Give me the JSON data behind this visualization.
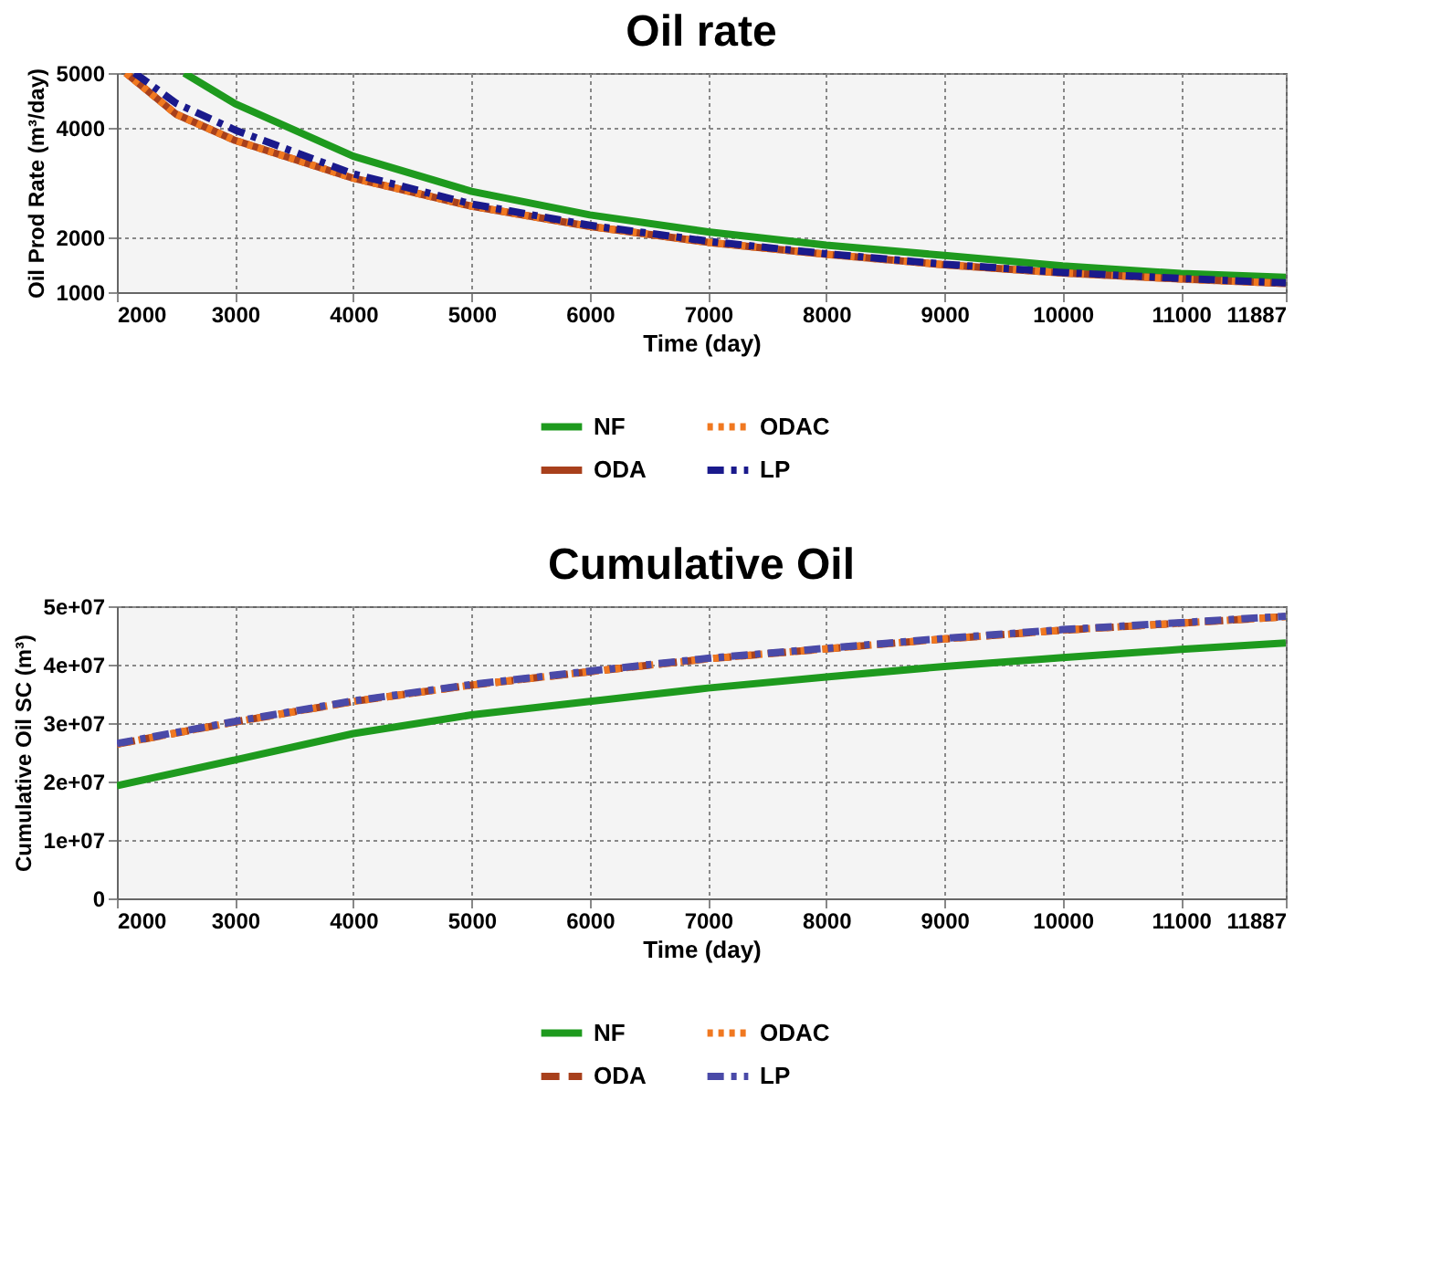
{
  "chart_data": [
    {
      "type": "line",
      "title": "Oil rate",
      "xlabel": "Time (day)",
      "ylabel": "Oil Prod Rate (m³/day)",
      "xlim": [
        2000,
        11887
      ],
      "xticks": [
        2000,
        3000,
        4000,
        5000,
        6000,
        7000,
        8000,
        9000,
        10000,
        11000,
        11887
      ],
      "ylim": [
        1000,
        5000
      ],
      "yticks": [
        1000,
        2000,
        4000,
        5000
      ],
      "grid": true,
      "legend": "bottom",
      "series": [
        {
          "name": "NF",
          "color": "#1e9a1e",
          "line_style": "solid",
          "x": [
            2570,
            2800,
            3000,
            4000,
            5000,
            6000,
            7000,
            8000,
            9000,
            10000,
            11000,
            11887
          ],
          "values": [
            5000,
            4700,
            4440,
            3480,
            2840,
            2410,
            2100,
            1860,
            1670,
            1480,
            1340,
            1270
          ]
        },
        {
          "name": "ODA",
          "color": "#a8401c",
          "line_style": "solid",
          "x": [
            2076,
            2500,
            3000,
            4000,
            5000,
            6000,
            7000,
            8000,
            9000,
            10000,
            11000,
            11887
          ],
          "values": [
            5000,
            4250,
            3770,
            3080,
            2570,
            2200,
            1910,
            1690,
            1500,
            1350,
            1240,
            1160
          ]
        },
        {
          "name": "ODAC",
          "color": "#f07820",
          "line_style": "dotted",
          "x": [
            2076,
            2500,
            3000,
            4000,
            5000,
            6000,
            7000,
            8000,
            9000,
            10000,
            11000,
            11887
          ],
          "values": [
            5000,
            4250,
            3770,
            3080,
            2570,
            2200,
            1910,
            1690,
            1500,
            1350,
            1240,
            1160
          ]
        },
        {
          "name": "LP",
          "color": "#1a1a8c",
          "line_style": "dashdot",
          "x": [
            2150,
            2500,
            3000,
            4000,
            5000,
            6000,
            7000,
            8000,
            9000,
            10000,
            11000,
            11887
          ],
          "values": [
            5000,
            4450,
            3960,
            3160,
            2610,
            2220,
            1930,
            1700,
            1510,
            1360,
            1250,
            1170
          ]
        }
      ]
    },
    {
      "type": "line",
      "title": "Cumulative Oil",
      "xlabel": "Time (day)",
      "ylabel": "Cumulative Oil SC (m³)",
      "xlim": [
        2000,
        11887
      ],
      "xticks": [
        2000,
        3000,
        4000,
        5000,
        6000,
        7000,
        8000,
        9000,
        10000,
        11000,
        11887
      ],
      "ylim": [
        0,
        50000000
      ],
      "yticks": [
        0,
        {
          "value": 10000000,
          "label": "1e+07"
        },
        {
          "value": 20000000,
          "label": "2e+07"
        },
        {
          "value": 30000000,
          "label": "3e+07"
        },
        {
          "value": 40000000,
          "label": "4e+07"
        },
        {
          "value": 50000000,
          "label": "5e+07"
        }
      ],
      "grid": true,
      "legend": "bottom",
      "series": [
        {
          "name": "NF",
          "color": "#1e9a1e",
          "line_style": "solid",
          "x": [
            2000,
            3000,
            4000,
            5000,
            6000,
            7000,
            8000,
            9000,
            10000,
            11000,
            11887
          ],
          "values": [
            19300000,
            23700000,
            28200000,
            31400000,
            33700000,
            36000000,
            37900000,
            39700000,
            41200000,
            42600000,
            43700000
          ]
        },
        {
          "name": "ODA",
          "color": "#a8401c",
          "line_style": "dashed",
          "x": [
            2000,
            3000,
            4000,
            5000,
            6000,
            7000,
            8000,
            9000,
            10000,
            11000,
            11887
          ],
          "values": [
            26400000,
            30200000,
            33700000,
            36500000,
            38800000,
            41000000,
            42700000,
            44400000,
            45900000,
            47100000,
            48200000
          ]
        },
        {
          "name": "ODAC",
          "color": "#f07820",
          "line_style": "dotted",
          "x": [
            2000,
            3000,
            4000,
            5000,
            6000,
            7000,
            8000,
            9000,
            10000,
            11000,
            11887
          ],
          "values": [
            26400000,
            30200000,
            33700000,
            36500000,
            38800000,
            41000000,
            42700000,
            44400000,
            45900000,
            47100000,
            48200000
          ]
        },
        {
          "name": "LP",
          "color": "#4a4aa8",
          "line_style": "dashdot",
          "x": [
            2000,
            3000,
            4000,
            5000,
            6000,
            7000,
            8000,
            9000,
            10000,
            11000,
            11887
          ],
          "values": [
            26500000,
            30300000,
            33800000,
            36600000,
            38900000,
            41100000,
            42800000,
            44500000,
            46000000,
            47200000,
            48300000
          ]
        }
      ]
    }
  ]
}
